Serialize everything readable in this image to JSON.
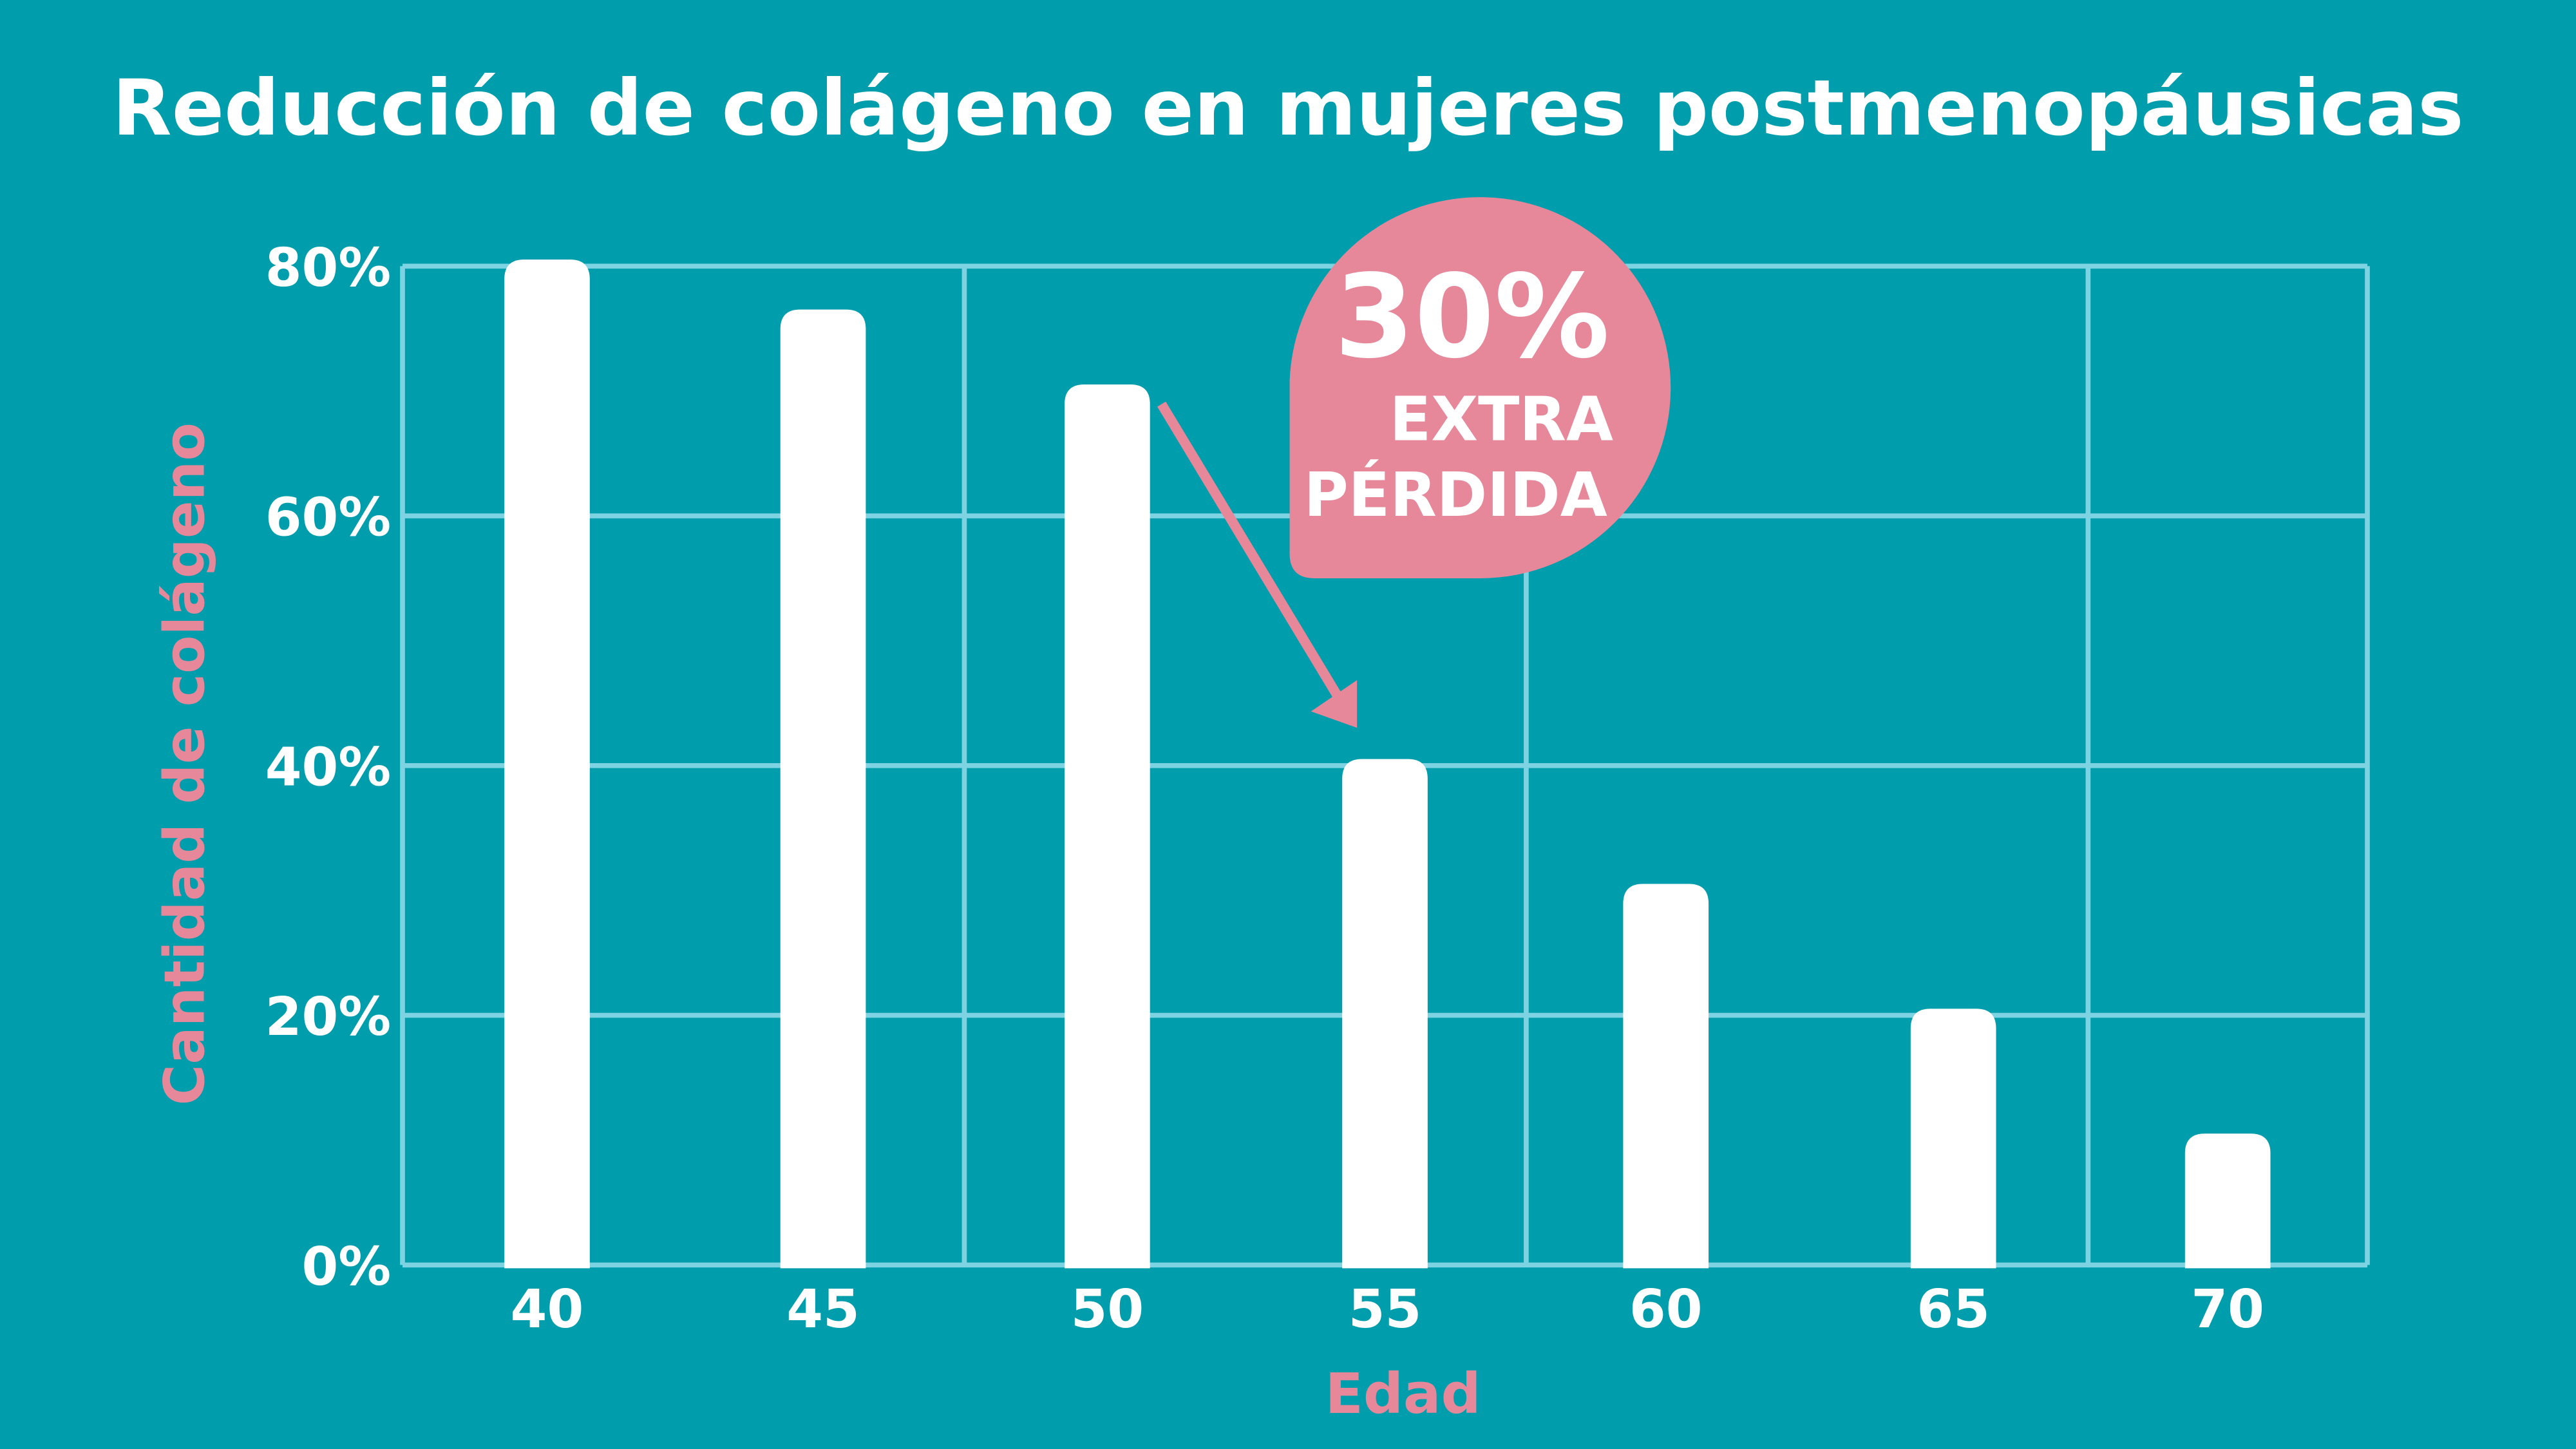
{
  "colors": {
    "background": "#009dac",
    "grid": "#7ed3e3",
    "bar": "#ffffff",
    "accent": "#e6889a",
    "text": "#ffffff"
  },
  "chart_data": {
    "type": "bar",
    "title": "Reducción de colágeno en mujeres postmenopáusicas",
    "xlabel": "Edad",
    "ylabel": "Cantidad de colágeno",
    "categories": [
      "40",
      "45",
      "50",
      "55",
      "60",
      "65",
      "70"
    ],
    "values": [
      80,
      76,
      70,
      40,
      30,
      20,
      10
    ],
    "unit": "%",
    "ylim": [
      0,
      80
    ],
    "yticks": [
      "0%",
      "20%",
      "40%",
      "60%",
      "80%"
    ],
    "grid": true,
    "annotation": {
      "value": "30%",
      "line1": "EXTRA",
      "line2": "PÉRDIDA",
      "arrow_from": "50",
      "arrow_to": "55"
    }
  }
}
